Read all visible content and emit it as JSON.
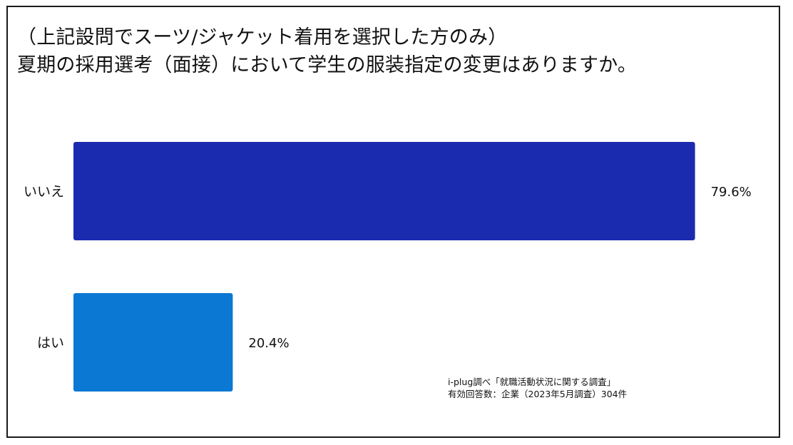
{
  "chart_data": {
    "type": "bar",
    "orientation": "horizontal",
    "title_lines": [
      "（上記設問でスーツ/ジャケット着用を選択した方のみ）",
      "夏期の採用選考（面接）において学生の服装指定の変更はありますか。"
    ],
    "categories": [
      "いいえ",
      "はい"
    ],
    "values": [
      79.6,
      20.4
    ],
    "value_labels": [
      "79.6%",
      "20.4%"
    ],
    "unit": "%",
    "xlim": [
      0,
      100
    ],
    "grid": false,
    "legend": "none",
    "colors": [
      "#1a2bb0",
      "#0b78d4"
    ]
  },
  "source": {
    "line1": "i-plug調べ「就職活動状況に関する調査」",
    "line2": "有効回答数：企業（2023年5月調査）304件"
  }
}
